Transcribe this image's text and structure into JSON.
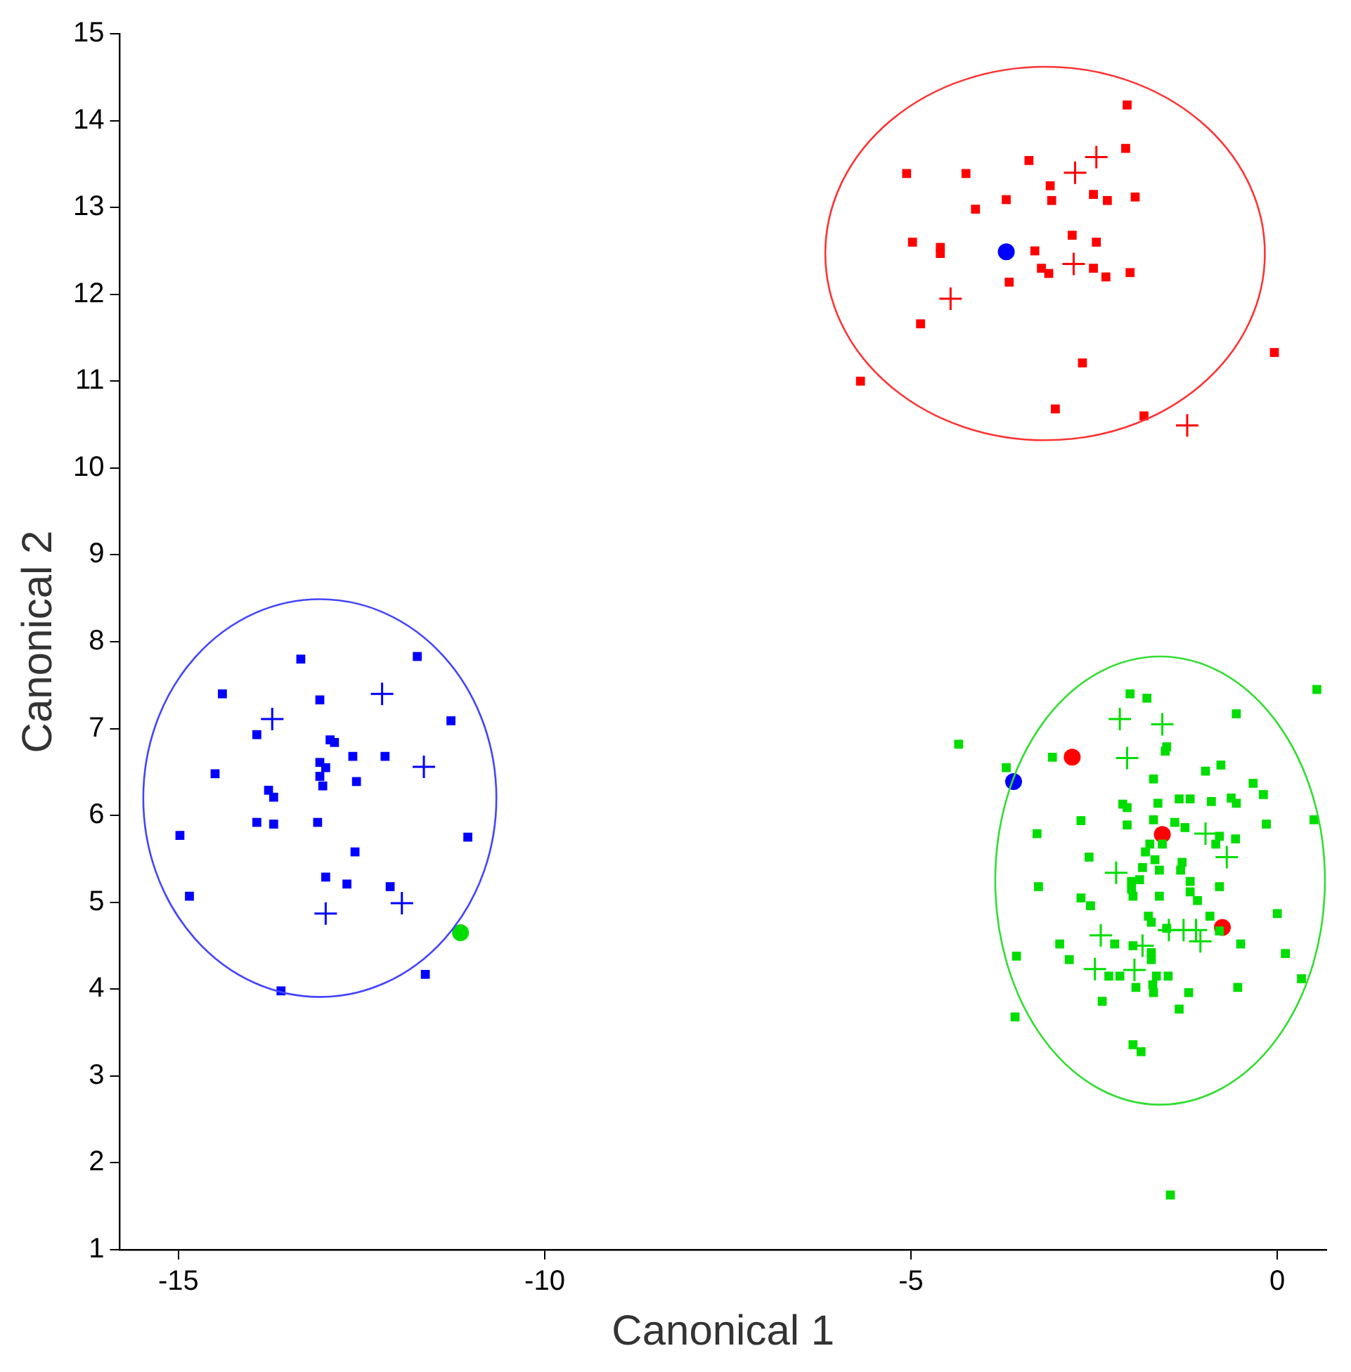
{
  "chart_data": {
    "type": "scatter",
    "xlabel": "Canonical 1",
    "ylabel": "Canonical 2",
    "xlim": [
      -15.8,
      0.67
    ],
    "ylim": [
      1,
      15
    ],
    "xticks": [
      -15,
      -10,
      -5,
      0
    ],
    "yticks": [
      1,
      2,
      3,
      4,
      5,
      6,
      7,
      8,
      9,
      10,
      11,
      12,
      13,
      14,
      15
    ],
    "grid": false,
    "legend": false,
    "series": [
      {
        "marker": "square",
        "color": "#ff0000",
        "x": [
          -2.05,
          -2.07,
          -5.06,
          -4.25,
          -3.39,
          -3.7,
          -3.1,
          -3.08,
          -2.51,
          -2.32,
          -1.94,
          -4.12,
          -4.98,
          -4.6,
          -4.6,
          -3.31,
          -3.22,
          -3.12,
          -2.8,
          -2.47,
          -2.51,
          -2.34,
          -2.01,
          -3.66,
          -4.87,
          -2.66,
          -5.69,
          -0.04,
          -3.03,
          -1.82
        ],
        "values": [
          14.18,
          13.68,
          13.39,
          13.39,
          13.54,
          13.09,
          13.25,
          13.08,
          13.15,
          13.08,
          13.12,
          12.98,
          12.6,
          12.54,
          12.47,
          12.5,
          12.3,
          12.24,
          12.68,
          12.6,
          12.3,
          12.2,
          12.25,
          12.14,
          11.66,
          11.21,
          11.0,
          11.33,
          10.68,
          10.6
        ]
      },
      {
        "marker": "cross",
        "color": "#ff0000",
        "x": [
          -2.47,
          -2.76,
          -2.78,
          -4.46,
          -1.23
        ],
        "values": [
          13.58,
          13.4,
          12.35,
          11.95,
          10.49
        ]
      },
      {
        "marker": "square",
        "color": "#0000ff",
        "x": [
          -13.33,
          -11.74,
          -14.4,
          -13.07,
          -11.28,
          -13.93,
          -12.93,
          -12.87,
          -12.62,
          -12.18,
          -13.07,
          -12.99,
          -13.07,
          -13.03,
          -12.57,
          -14.5,
          -13.77,
          -13.7,
          -13.93,
          -13.7,
          -13.1,
          -14.98,
          -11.05,
          -12.59,
          -12.99,
          -12.7,
          -12.11,
          -14.85,
          -11.63,
          -13.6
        ],
        "values": [
          7.8,
          7.83,
          7.4,
          7.33,
          7.09,
          6.93,
          6.87,
          6.84,
          6.68,
          6.68,
          6.61,
          6.55,
          6.45,
          6.34,
          6.39,
          6.48,
          6.29,
          6.21,
          5.92,
          5.9,
          5.92,
          5.77,
          5.75,
          5.58,
          5.29,
          5.21,
          5.18,
          5.07,
          4.17,
          3.98
        ]
      },
      {
        "marker": "cross",
        "color": "#0000ff",
        "x": [
          -13.72,
          -12.22,
          -11.65,
          -11.95,
          -12.99
        ],
        "values": [
          7.11,
          7.4,
          6.56,
          4.99,
          4.87
        ]
      },
      {
        "marker": "square",
        "color": "#00dd00",
        "x": [
          -2.01,
          -1.78,
          0.54,
          -0.56,
          -4.35,
          -3.07,
          -3.7,
          -1.51,
          -1.53,
          -0.98,
          -0.77,
          -1.69,
          -0.33,
          -0.19,
          -1.34,
          -1.19,
          -0.9,
          -0.63,
          -0.56,
          -2.11,
          -2.05,
          -1.63,
          -2.68,
          -2.05,
          -1.69,
          -1.4,
          -1.26,
          -0.15,
          0.5,
          -3.28,
          -0.79,
          -0.57,
          -0.84,
          -1.74,
          -1.57,
          -1.8,
          -2.57,
          -1.67,
          -1.84,
          -1.3,
          -1.32,
          -1.61,
          -3.26,
          -1.99,
          -1.88,
          -1.19,
          -1.99,
          -1.97,
          -1.61,
          -1.19,
          -0.79,
          -1.09,
          -2.68,
          -2.55,
          0.0,
          -1.76,
          -1.72,
          -0.92,
          -1.51,
          -0.79,
          -2.97,
          -2.22,
          -0.5,
          -3.56,
          -2.84,
          -1.97,
          -1.72,
          -1.72,
          0.11,
          0.33,
          -2.3,
          -2.15,
          -1.65,
          -1.49,
          -1.93,
          -1.7,
          -1.69,
          -1.21,
          -0.54,
          -2.39,
          -1.34,
          -3.58,
          -1.97,
          -1.86,
          -1.46
        ],
        "values": [
          7.4,
          7.35,
          7.45,
          7.17,
          6.82,
          6.67,
          6.55,
          6.79,
          6.74,
          6.51,
          6.58,
          6.42,
          6.37,
          6.24,
          6.19,
          6.19,
          6.16,
          6.2,
          6.14,
          6.13,
          6.09,
          6.14,
          5.94,
          5.89,
          5.95,
          5.92,
          5.86,
          5.9,
          5.95,
          5.79,
          5.76,
          5.73,
          5.67,
          5.67,
          5.67,
          5.58,
          5.52,
          5.49,
          5.4,
          5.46,
          5.37,
          5.37,
          5.18,
          5.24,
          5.26,
          5.24,
          5.15,
          5.07,
          5.07,
          5.12,
          5.18,
          5.02,
          5.05,
          4.96,
          4.87,
          4.84,
          4.77,
          4.84,
          4.7,
          4.67,
          4.52,
          4.52,
          4.52,
          4.38,
          4.34,
          4.5,
          4.42,
          4.34,
          4.41,
          4.12,
          4.15,
          4.15,
          4.15,
          4.15,
          4.02,
          4.05,
          3.96,
          3.96,
          4.02,
          3.86,
          3.77,
          3.68,
          3.36,
          3.28,
          1.63
        ]
      },
      {
        "marker": "cross",
        "color": "#00dd00",
        "x": [
          -2.15,
          -1.57,
          -2.05,
          -0.98,
          -0.69,
          -2.2,
          -2.41,
          -1.48,
          -1.28,
          -1.11,
          -1.05,
          -1.84,
          -2.49,
          -1.95
        ],
        "values": [
          7.11,
          7.05,
          6.66,
          5.79,
          5.52,
          5.34,
          4.62,
          4.68,
          4.68,
          4.68,
          4.55,
          4.5,
          4.23,
          4.22
        ]
      },
      {
        "marker": "circle",
        "color": "#ff0000",
        "x": [
          -2.8,
          -1.57,
          -0.75
        ],
        "values": [
          6.67,
          5.78,
          4.71
        ]
      },
      {
        "marker": "circle",
        "color": "#0000ff",
        "x": [
          -3.7,
          -3.6
        ],
        "values": [
          12.49,
          6.39
        ]
      },
      {
        "marker": "circle",
        "color": "#00dd00",
        "x": [
          -11.15
        ],
        "values": [
          4.65
        ]
      }
    ]
  }
}
